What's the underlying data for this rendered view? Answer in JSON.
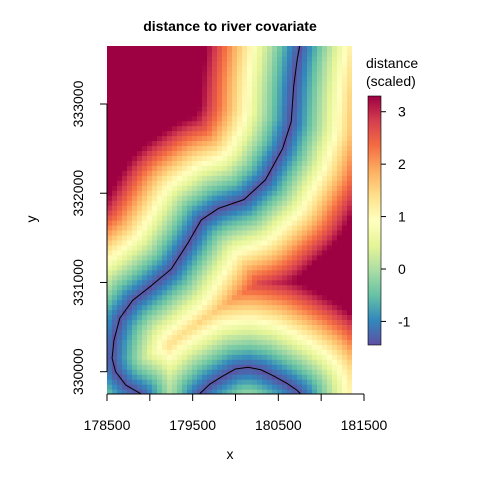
{
  "chart_data": {
    "type": "heatmap",
    "title": "distance to river covariate",
    "xlabel": "x",
    "ylabel": "y",
    "xlim": [
      178500,
      181360
    ],
    "ylim": [
      329750,
      333650
    ],
    "x_ticks": [
      178500,
      179000,
      179500,
      180000,
      180500,
      181000,
      181500
    ],
    "x_tick_labels": [
      "178500",
      "179500",
      "180500",
      "181500"
    ],
    "y_ticks": [
      330000,
      331000,
      332000,
      333000
    ],
    "y_tick_labels": [
      "330000",
      "331000",
      "332000",
      "333000"
    ],
    "legend": {
      "title_lines": [
        "distance",
        "(scaled)"
      ],
      "placement": "right",
      "range": [
        -1.45,
        3.3
      ],
      "ticks": [
        -1,
        0,
        1,
        2,
        3
      ],
      "tick_labels": [
        "-1",
        "0",
        "1",
        "2",
        "3"
      ],
      "colors": [
        "#5E4FA2",
        "#3288BD",
        "#66C2A5",
        "#ABDDA4",
        "#E6F598",
        "#FFFFBF",
        "#FEE08B",
        "#FDAE61",
        "#F46D43",
        "#D53E4F",
        "#9E0142"
      ]
    },
    "river": [
      [
        178900,
        329750
      ],
      [
        178720,
        329850
      ],
      [
        178600,
        330000
      ],
      [
        178560,
        330150
      ],
      [
        178580,
        330350
      ],
      [
        178650,
        330600
      ],
      [
        178800,
        330800
      ],
      [
        179000,
        330950
      ],
      [
        179250,
        331150
      ],
      [
        179450,
        331450
      ],
      [
        179600,
        331700
      ],
      [
        179800,
        331830
      ],
      [
        180100,
        331930
      ],
      [
        180350,
        332150
      ],
      [
        180550,
        332500
      ],
      [
        180650,
        332800
      ],
      [
        180680,
        333200
      ],
      [
        180720,
        333500
      ],
      [
        180750,
        333650
      ]
    ],
    "river_lower": [
      [
        179580,
        329750
      ],
      [
        179700,
        329860
      ],
      [
        179850,
        329950
      ],
      [
        180000,
        330030
      ],
      [
        180150,
        330050
      ],
      [
        180300,
        330020
      ],
      [
        180450,
        329950
      ],
      [
        180600,
        329870
      ],
      [
        180720,
        329790
      ],
      [
        180760,
        329750
      ]
    ],
    "features": {
      "ridges": [
        [
          [
            178500,
            333650
          ],
          [
            178800,
            333400
          ],
          [
            179050,
            333150
          ],
          [
            179300,
            332900
          ],
          [
            179700,
            332750
          ],
          [
            180000,
            332550
          ],
          [
            180200,
            332300
          ],
          [
            180400,
            332000
          ]
        ],
        [
          [
            179450,
            332750
          ],
          [
            179900,
            332500
          ],
          [
            180200,
            332050
          ],
          [
            180350,
            331700
          ],
          [
            180450,
            331350
          ],
          [
            180750,
            331300
          ],
          [
            181360,
            331300
          ]
        ],
        [
          [
            180550,
            333650
          ],
          [
            181000,
            333100
          ],
          [
            181360,
            332800
          ]
        ],
        [
          [
            178500,
            330950
          ],
          [
            178900,
            330600
          ],
          [
            179200,
            330300
          ],
          [
            179500,
            330050
          ],
          [
            179800,
            329900
          ],
          [
            180100,
            330150
          ],
          [
            180400,
            330400
          ],
          [
            180700,
            330650
          ],
          [
            181360,
            330850
          ]
        ]
      ],
      "valleys": [
        [
          [
            178500,
            330950
          ],
          [
            179150,
            330850
          ],
          [
            179550,
            331050
          ],
          [
            179750,
            331250
          ],
          [
            180050,
            331250
          ],
          [
            180300,
            331100
          ],
          [
            180600,
            330900
          ],
          [
            180900,
            330700
          ],
          [
            181100,
            330300
          ],
          [
            181200,
            329950
          ],
          [
            181360,
            329750
          ]
        ],
        [
          [
            180850,
            333650
          ],
          [
            181150,
            333350
          ],
          [
            181360,
            333150
          ]
        ]
      ]
    },
    "grid": false
  }
}
